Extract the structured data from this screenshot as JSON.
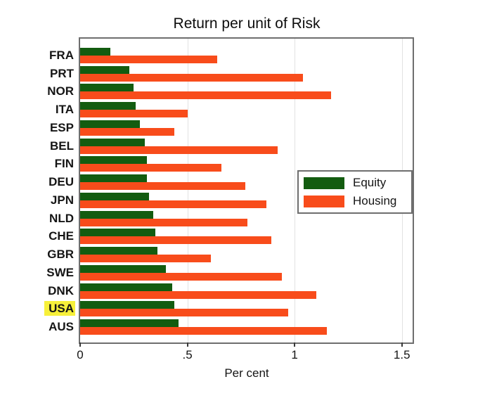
{
  "chart_data": {
    "type": "bar",
    "orientation": "horizontal",
    "title": "Return per unit of Risk",
    "xlabel": "Per cent",
    "categories": [
      "FRA",
      "PRT",
      "NOR",
      "ITA",
      "ESP",
      "BEL",
      "FIN",
      "DEU",
      "JPN",
      "NLD",
      "CHE",
      "GBR",
      "SWE",
      "DNK",
      "USA",
      "AUS"
    ],
    "series": [
      {
        "name": "Equity",
        "color": "#135c10",
        "values": [
          0.14,
          0.23,
          0.25,
          0.26,
          0.28,
          0.3,
          0.31,
          0.31,
          0.32,
          0.34,
          0.35,
          0.36,
          0.4,
          0.43,
          0.44,
          0.46
        ]
      },
      {
        "name": "Housing",
        "color": "#f84c1b",
        "values": [
          0.64,
          1.04,
          1.17,
          0.5,
          0.44,
          0.92,
          0.66,
          0.77,
          0.87,
          0.78,
          0.89,
          0.61,
          0.94,
          1.1,
          0.97,
          1.15
        ]
      }
    ],
    "xlim": [
      0,
      1.55
    ],
    "x_tick_values": [
      0,
      0.5,
      1,
      1.5
    ],
    "x_tick_labels": [
      "0",
      ".5",
      "1",
      "1.5"
    ],
    "grid": true,
    "gridline_color": "#e2e2e2",
    "legend_position": "right-middle",
    "highlighted_category": "USA",
    "highlight_color": "#f7f03a"
  }
}
